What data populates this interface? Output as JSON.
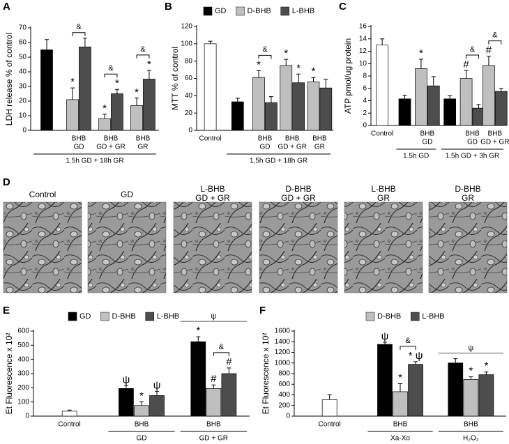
{
  "chart_data": [
    {
      "type": "bar",
      "panel": "A",
      "ylabel": "LDH release % of control",
      "ylim": [
        0,
        70
      ],
      "yticks": [
        0,
        10,
        20,
        30,
        40,
        50,
        60,
        70
      ],
      "categories": [
        null,
        [
          "BHB",
          "GD"
        ],
        [
          "BHB",
          "GD + GR"
        ],
        [
          "BHB",
          "GR"
        ]
      ],
      "series": [
        {
          "color": "#000000",
          "values": [
            55,
            null,
            null,
            null
          ],
          "errors": [
            7,
            null,
            null,
            null
          ],
          "annotations": [
            null,
            null,
            null,
            null
          ]
        },
        {
          "color": "#bfbfbf",
          "values": [
            null,
            21,
            8,
            17
          ],
          "errors": [
            null,
            8,
            3,
            5
          ],
          "annotations": [
            null,
            "*",
            "*",
            "*"
          ]
        },
        {
          "color": "#4d4d4d",
          "values": [
            null,
            57,
            25,
            35
          ],
          "errors": [
            null,
            6,
            3,
            6
          ],
          "annotations": [
            null,
            null,
            "*",
            "*"
          ]
        }
      ],
      "bracket_labels": [
        null,
        "&",
        "&",
        "&"
      ],
      "groups": [
        {
          "label": "1.5h GD + 18h GR",
          "first": 0,
          "last": 3
        }
      ]
    },
    {
      "type": "bar",
      "panel": "B",
      "ylabel": "MTT % of control",
      "ylim": [
        0,
        120
      ],
      "yticks": [
        0,
        20,
        40,
        60,
        80,
        100,
        120
      ],
      "categories": [
        [
          "Control"
        ],
        null,
        [
          "BHB",
          "GD"
        ],
        [
          "BHB",
          "GD + GR"
        ],
        [
          "BHB",
          "GR"
        ]
      ],
      "series": [
        {
          "color": "#ffffff",
          "values": [
            100,
            null,
            null,
            null,
            null
          ],
          "errors": [
            3,
            null,
            null,
            null,
            null
          ],
          "annotations": [
            null,
            null,
            null,
            null,
            null
          ]
        },
        {
          "name": "GD",
          "color": "#000000",
          "values": [
            null,
            33,
            null,
            null,
            null
          ],
          "errors": [
            null,
            4,
            null,
            null,
            null
          ],
          "annotations": [
            null,
            null,
            null,
            null,
            null
          ]
        },
        {
          "name": "D-BHB",
          "color": "#bfbfbf",
          "values": [
            null,
            null,
            61,
            75,
            56
          ],
          "errors": [
            null,
            null,
            8,
            7,
            5
          ],
          "annotations": [
            null,
            null,
            "*",
            "*",
            "*"
          ]
        },
        {
          "name": "L-BHB",
          "color": "#4d4d4d",
          "values": [
            null,
            null,
            32,
            55,
            49
          ],
          "errors": [
            null,
            null,
            7,
            10,
            10
          ],
          "annotations": [
            null,
            null,
            null,
            "*",
            null
          ]
        }
      ],
      "bracket_labels": [
        null,
        null,
        "&",
        null,
        null
      ],
      "groups": [
        {
          "label": "1.5h GD + 18h GR",
          "first": 1,
          "last": 4
        }
      ]
    },
    {
      "type": "bar",
      "panel": "C",
      "ylabel": "ATP pmol/ug protein",
      "ylim": [
        0,
        16
      ],
      "yticks": [
        0,
        2,
        4,
        6,
        8,
        10,
        12,
        14,
        16
      ],
      "categories": [
        [
          "Control"
        ],
        null,
        [
          "BHB",
          "GD"
        ],
        null,
        [
          "BHB",
          "GD"
        ],
        [
          "BHB",
          "GD + GR"
        ]
      ],
      "series": [
        {
          "color": "#ffffff",
          "values": [
            13,
            null,
            null,
            null,
            null,
            null
          ],
          "errors": [
            1,
            null,
            null,
            null,
            null,
            null
          ],
          "annotations": [
            null,
            null,
            null,
            null,
            null,
            null
          ]
        },
        {
          "color": "#000000",
          "values": [
            null,
            4.3,
            null,
            4.3,
            null,
            null
          ],
          "errors": [
            null,
            0.6,
            null,
            0.5,
            null,
            null
          ],
          "annotations": [
            null,
            null,
            null,
            null,
            null,
            null
          ]
        },
        {
          "color": "#bfbfbf",
          "values": [
            null,
            null,
            9.2,
            null,
            7.6,
            9.7
          ],
          "errors": [
            null,
            null,
            1.5,
            null,
            1.3,
            1.5
          ],
          "annotations": [
            null,
            null,
            "*",
            null,
            "#",
            "#"
          ]
        },
        {
          "color": "#4d4d4d",
          "values": [
            null,
            null,
            6.4,
            null,
            2.8,
            5.5
          ],
          "errors": [
            null,
            null,
            1.5,
            null,
            0.6,
            0.5
          ],
          "annotations": [
            null,
            null,
            null,
            null,
            null,
            null
          ]
        }
      ],
      "bracket_labels": [
        null,
        null,
        null,
        null,
        "&",
        "&"
      ],
      "groups": [
        {
          "label": "1.5h GD",
          "first": 1,
          "last": 2
        },
        {
          "label": "1.5h GD + 3h GR",
          "first": 3,
          "last": 5
        }
      ]
    },
    {
      "type": "bar",
      "panel": "E",
      "ylabel": "Et Fluorescence x 10²",
      "ylim": [
        0,
        600
      ],
      "yticks": [
        0,
        100,
        200,
        300,
        400,
        500,
        600
      ],
      "categories": [
        [
          "Control"
        ],
        [
          "BHB"
        ],
        [
          "BHB"
        ]
      ],
      "series": [
        {
          "color": "#ffffff",
          "values": [
            35,
            null,
            null
          ],
          "errors": [
            8,
            null,
            null
          ],
          "annotations": [
            null,
            null,
            null
          ]
        },
        {
          "name": "GD",
          "color": "#000000",
          "values": [
            null,
            195,
            525
          ],
          "errors": [
            null,
            20,
            35
          ],
          "annotations": [
            null,
            "ψ",
            "*"
          ]
        },
        {
          "name": "D-BHB",
          "color": "#bfbfbf",
          "values": [
            null,
            75,
            195
          ],
          "errors": [
            null,
            25,
            25
          ],
          "annotations": [
            null,
            "*",
            "#"
          ]
        },
        {
          "name": "L-BHB",
          "color": "#4d4d4d",
          "values": [
            null,
            145,
            300
          ],
          "errors": [
            null,
            30,
            40
          ],
          "annotations": [
            null,
            "ψ",
            "#"
          ]
        }
      ],
      "bracket_labels": [
        null,
        null,
        "&"
      ],
      "span_labels": [
        null,
        null,
        "ψ"
      ],
      "groups": [
        {
          "label": "GD",
          "first": 1,
          "last": 1
        },
        {
          "label": "GD + GR",
          "first": 2,
          "last": 2
        }
      ]
    },
    {
      "type": "bar",
      "panel": "F",
      "ylabel": "Et Fluorescence x 10²",
      "ylim": [
        0,
        1600
      ],
      "yticks": [
        0,
        200,
        400,
        600,
        800,
        1000,
        1200,
        1400,
        1600
      ],
      "categories": [
        [
          "Control"
        ],
        [
          "BHB"
        ],
        [
          "BHB"
        ]
      ],
      "series": [
        {
          "color": "#ffffff",
          "values": [
            310,
            null,
            null
          ],
          "errors": [
            90,
            null,
            null
          ],
          "annotations": [
            null,
            null,
            null
          ]
        },
        {
          "color": "#000000",
          "values": [
            null,
            1350,
            1000
          ],
          "errors": [
            null,
            40,
            80
          ],
          "annotations": [
            null,
            "ψ",
            null
          ]
        },
        {
          "name": "D-BHB",
          "color": "#bfbfbf",
          "values": [
            null,
            460,
            690
          ],
          "errors": [
            null,
            150,
            50
          ],
          "annotations": [
            null,
            "*",
            "*"
          ]
        },
        {
          "name": "L-BHB",
          "color": "#4d4d4d",
          "values": [
            null,
            975,
            780
          ],
          "errors": [
            null,
            50,
            50
          ],
          "annotations": [
            null,
            "* ψ",
            "*"
          ]
        }
      ],
      "bracket_labels": [
        null,
        "&",
        null
      ],
      "span_labels": [
        null,
        null,
        "ψ"
      ],
      "groups": [
        {
          "label": "Xa-Xo",
          "first": 1,
          "last": 1
        },
        {
          "label": "H₂O₂",
          "first": 2,
          "last": 2
        }
      ]
    }
  ],
  "micrographs": {
    "panel": "D",
    "images": [
      {
        "label": [
          "Control"
        ]
      },
      {
        "label": [
          "GD"
        ]
      },
      {
        "label": [
          "L-BHB",
          "GD + GR"
        ]
      },
      {
        "label": [
          "D-BHB",
          "GD + GR"
        ]
      },
      {
        "label": [
          "L-BHB",
          "GR"
        ]
      },
      {
        "label": [
          "D-BHB",
          "GR"
        ]
      }
    ]
  }
}
